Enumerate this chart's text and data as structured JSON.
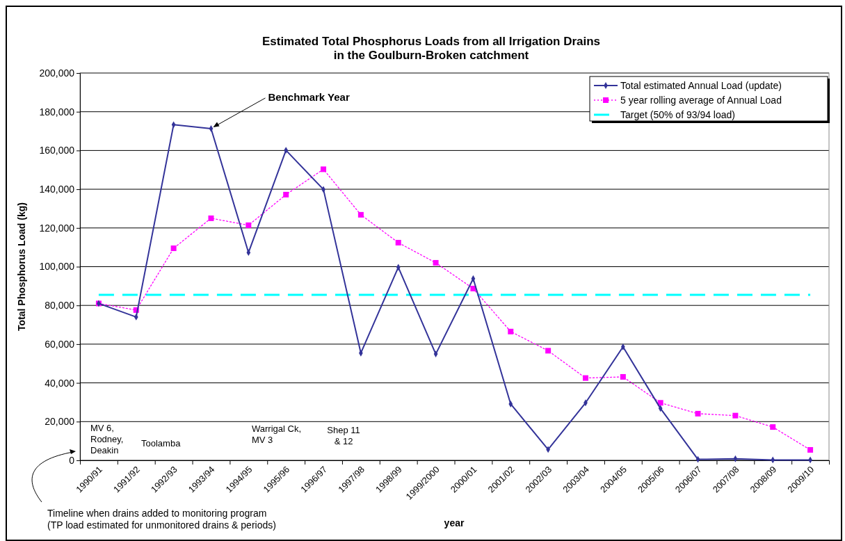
{
  "chart_data": {
    "type": "line",
    "title": "Estimated Total Phosphorus Loads from all Irrigation Drains\nin the Goulburn-Broken catchment",
    "xlabel": "year",
    "ylabel": "Total Phosphorus Load  (kg)",
    "categories": [
      "1990/91",
      "1991/92",
      "1992/93",
      "1993/94",
      "1994/95",
      "1995/96",
      "1996/97",
      "1997/98",
      "1998/99",
      "1999/2000",
      "2000/01",
      "2001/02",
      "2002/03",
      "2003/04",
      "2004/05",
      "2005/06",
      "2006/07",
      "2007/08",
      "2008/09",
      "2009/10"
    ],
    "series": [
      {
        "name": "Total estimated Annual Load (update)",
        "color": "#333399",
        "marker": "diamond",
        "line_style": "solid",
        "values": [
          81000,
          74000,
          173300,
          171300,
          107300,
          160100,
          139900,
          55400,
          99700,
          54900,
          93800,
          29100,
          5600,
          29700,
          58600,
          26800,
          500,
          800,
          200,
          200
        ]
      },
      {
        "name": "5 year rolling average of Annual Load",
        "color": "#ff00ff",
        "marker": "square",
        "line_style": "dotted",
        "values": [
          81000,
          77600,
          109500,
          125000,
          121400,
          137200,
          150300,
          126800,
          112400,
          102000,
          88700,
          66500,
          56600,
          42500,
          43100,
          29700,
          24100,
          23100,
          17200,
          5400
        ]
      },
      {
        "name": "Target (50% of 93/94 load)",
        "color": "#00ffff",
        "marker": "none",
        "line_style": "dashed",
        "values": [
          85500,
          85500,
          85500,
          85500,
          85500,
          85500,
          85500,
          85500,
          85500,
          85500,
          85500,
          85500,
          85500,
          85500,
          85500,
          85500,
          85500,
          85500,
          85500,
          85500
        ]
      }
    ],
    "ylim": [
      0,
      200000
    ],
    "yticks": [
      {
        "value": 0,
        "label": "0"
      },
      {
        "value": 20000,
        "label": "20,000"
      },
      {
        "value": 40000,
        "label": "40,000"
      },
      {
        "value": 60000,
        "label": "60,000"
      },
      {
        "value": 80000,
        "label": "80,000"
      },
      {
        "value": 100000,
        "label": "100,000"
      },
      {
        "value": 120000,
        "label": "120,000"
      },
      {
        "value": 140000,
        "label": "140,000"
      },
      {
        "value": 160000,
        "label": "160,000"
      },
      {
        "value": 180000,
        "label": "180,000"
      },
      {
        "value": 200000,
        "label": "200,000"
      }
    ],
    "grid": "y",
    "legend": "top right",
    "annotations": [
      {
        "text": "Benchmark  Year",
        "x": "1993/94",
        "y": 171300
      },
      "MV 6,\nRodney,\nDeakin",
      "Toolamba",
      "Warrigal Ck,\nMV 3",
      "Shep 11\n& 12",
      "Timeline when drains added to monitoring program\n(TP load estimated for unmonitored drains & periods)"
    ]
  }
}
